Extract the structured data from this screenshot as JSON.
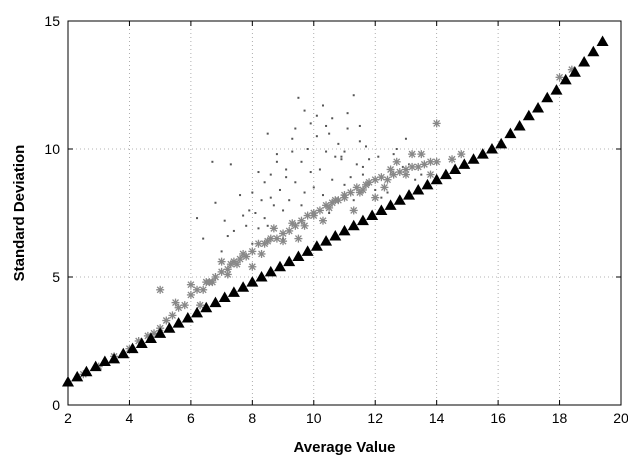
{
  "chart_data": {
    "type": "scatter",
    "title": "",
    "xlabel": "Average Value",
    "ylabel": "Standard Deviation",
    "xlim": [
      2,
      20
    ],
    "ylim": [
      0,
      15
    ],
    "xticks": [
      "2",
      "4",
      "6",
      "8",
      "10",
      "12",
      "14",
      "16",
      "18",
      "20"
    ],
    "yticks": [
      "0",
      "5",
      "10",
      "15"
    ],
    "grid": true,
    "legend": "none",
    "series": [
      {
        "marker": "dot",
        "color": "#555555",
        "x": [
          6.2,
          6.4,
          6.7,
          7.0,
          7.1,
          7.3,
          7.4,
          7.6,
          7.8,
          7.9,
          8.0,
          8.1,
          8.2,
          8.3,
          8.4,
          8.5,
          8.6,
          8.7,
          8.8,
          8.9,
          9.0,
          9.1,
          9.2,
          9.3,
          9.4,
          9.5,
          9.6,
          9.7,
          9.8,
          9.9,
          10.0,
          10.1,
          10.2,
          10.3,
          10.4,
          10.5,
          10.6,
          10.7,
          10.8,
          10.9,
          11.0,
          11.1,
          11.2,
          11.3,
          11.4,
          11.5,
          11.6,
          11.7,
          11.8,
          12.0,
          12.1,
          12.3,
          12.5,
          12.7,
          12.9,
          13.1,
          13.3,
          13.5,
          8.5,
          9.0,
          9.5,
          9.6,
          10.3,
          10.5,
          11.0,
          11.3,
          7.7,
          8.2,
          8.8,
          9.3,
          9.9,
          10.6,
          11.6,
          12.2,
          12.6,
          6.8,
          7.2,
          8.0,
          8.4,
          9.1,
          9.7,
          10.4,
          11.1,
          11.8,
          12.4,
          13.0,
          8.6,
          9.4,
          10.1,
          10.9,
          11.5
        ],
        "y": [
          7.3,
          6.5,
          9.5,
          6.0,
          7.2,
          9.4,
          6.8,
          8.2,
          7.0,
          7.6,
          8.3,
          7.5,
          6.9,
          8.0,
          7.3,
          10.6,
          8.1,
          7.8,
          9.5,
          8.4,
          7.6,
          9.2,
          8.0,
          10.4,
          8.7,
          12.0,
          9.5,
          8.3,
          10.0,
          9.1,
          8.5,
          10.5,
          9.2,
          11.7,
          9.9,
          10.6,
          8.8,
          9.7,
          10.2,
          9.6,
          9.9,
          10.8,
          8.9,
          12.1,
          9.4,
          10.3,
          9.0,
          10.1,
          8.6,
          8.4,
          9.7,
          8.5,
          9.0,
          10.0,
          9.3,
          9.4,
          8.8,
          9.0,
          7.0,
          6.5,
          7.1,
          7.8,
          8.2,
          7.5,
          8.6,
          8.0,
          7.4,
          9.1,
          9.8,
          9.9,
          11.0,
          11.2,
          9.3,
          8.1,
          9.8,
          7.9,
          6.6,
          6.3,
          8.7,
          8.9,
          11.5,
          10.9,
          11.4,
          9.6,
          8.3,
          10.4,
          9.0,
          10.8,
          11.3,
          9.7,
          10.9
        ]
      },
      {
        "marker": "asterisk",
        "color": "#888888",
        "x": [
          2.5,
          3.0,
          3.5,
          4.0,
          4.3,
          4.6,
          4.8,
          5.0,
          5.2,
          5.4,
          5.6,
          5.8,
          6.0,
          6.2,
          6.4,
          6.5,
          6.6,
          6.8,
          7.0,
          7.2,
          7.3,
          7.4,
          7.6,
          7.8,
          8.0,
          8.2,
          8.4,
          8.6,
          8.8,
          9.0,
          9.2,
          9.4,
          9.6,
          9.8,
          10.0,
          10.2,
          10.4,
          10.6,
          10.8,
          11.0,
          11.2,
          11.4,
          11.6,
          11.8,
          12.0,
          12.2,
          12.4,
          12.6,
          12.8,
          13.0,
          13.2,
          13.4,
          13.6,
          13.8,
          14.0,
          14.5,
          14.8,
          5.0,
          5.5,
          6.0,
          6.3,
          6.7,
          7.0,
          7.2,
          7.5,
          7.7,
          8.0,
          8.3,
          8.5,
          8.7,
          9.0,
          9.3,
          9.5,
          9.7,
          10.0,
          10.3,
          10.5,
          10.7,
          11.0,
          11.3,
          11.5,
          11.7,
          12.0,
          12.3,
          12.5,
          12.7,
          13.0,
          13.2,
          13.5,
          13.8,
          14.0,
          18.0,
          18.4
        ],
        "y": [
          1.2,
          1.5,
          1.9,
          2.2,
          2.5,
          2.7,
          2.8,
          3.0,
          3.3,
          3.5,
          3.8,
          3.9,
          4.3,
          4.5,
          4.5,
          4.8,
          4.8,
          5.0,
          5.2,
          5.3,
          5.5,
          5.6,
          5.7,
          5.8,
          6.0,
          6.3,
          6.3,
          6.5,
          6.5,
          6.7,
          6.8,
          7.0,
          7.2,
          7.4,
          7.4,
          7.6,
          7.8,
          7.9,
          8.0,
          8.2,
          8.3,
          8.5,
          8.4,
          8.7,
          8.8,
          8.9,
          8.8,
          9.0,
          9.1,
          9.2,
          9.3,
          9.3,
          9.4,
          9.5,
          9.5,
          9.6,
          9.8,
          4.5,
          4.0,
          4.7,
          3.9,
          4.8,
          5.6,
          5.1,
          5.5,
          5.9,
          5.4,
          5.9,
          6.4,
          6.9,
          6.4,
          7.1,
          6.5,
          7.0,
          7.5,
          7.2,
          7.7,
          8.0,
          8.1,
          7.6,
          8.3,
          8.6,
          8.1,
          8.5,
          9.2,
          9.5,
          9.0,
          9.8,
          9.8,
          9.0,
          11.0,
          12.8,
          13.1
        ]
      },
      {
        "marker": "triangle",
        "color": "#000000",
        "x": [
          2.0,
          2.3,
          2.6,
          2.9,
          3.2,
          3.5,
          3.8,
          4.1,
          4.4,
          4.7,
          5.0,
          5.3,
          5.6,
          5.9,
          6.2,
          6.5,
          6.8,
          7.1,
          7.4,
          7.7,
          8.0,
          8.3,
          8.6,
          8.9,
          9.2,
          9.5,
          9.8,
          10.1,
          10.4,
          10.7,
          11.0,
          11.3,
          11.6,
          11.9,
          12.2,
          12.5,
          12.8,
          13.1,
          13.4,
          13.7,
          14.0,
          14.3,
          14.6,
          14.9,
          15.2,
          15.5,
          15.8,
          16.1,
          16.4,
          16.7,
          17.0,
          17.3,
          17.6,
          17.9,
          18.2,
          18.5,
          18.8,
          19.1,
          19.4
        ],
        "y": [
          0.9,
          1.1,
          1.3,
          1.5,
          1.7,
          1.8,
          2.0,
          2.2,
          2.4,
          2.6,
          2.8,
          3.0,
          3.2,
          3.4,
          3.6,
          3.8,
          4.0,
          4.2,
          4.4,
          4.6,
          4.8,
          5.0,
          5.2,
          5.4,
          5.6,
          5.8,
          6.0,
          6.2,
          6.4,
          6.6,
          6.8,
          7.0,
          7.2,
          7.4,
          7.6,
          7.8,
          8.0,
          8.2,
          8.4,
          8.6,
          8.8,
          9.0,
          9.2,
          9.4,
          9.6,
          9.8,
          10.0,
          10.2,
          10.6,
          10.9,
          11.3,
          11.6,
          12.0,
          12.3,
          12.7,
          13.0,
          13.4,
          13.8,
          14.2
        ]
      }
    ]
  }
}
